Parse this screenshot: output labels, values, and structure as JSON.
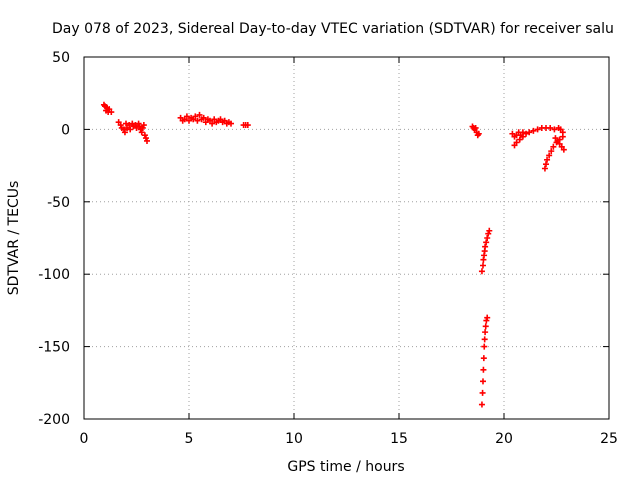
{
  "chart_data": {
    "type": "scatter",
    "title": "Day 078 of 2023, Sidereal Day-to-day VTEC variation (SDTVAR) for receiver salu",
    "xlabel": "GPS time / hours",
    "ylabel": "SDTVAR / TECUs",
    "xlim": [
      0,
      25
    ],
    "ylim": [
      -200,
      50
    ],
    "xticks": [
      0,
      5,
      10,
      15,
      20,
      25
    ],
    "yticks": [
      50,
      0,
      -50,
      -100,
      -150,
      -200
    ],
    "xtick_labels": [
      "0",
      "5",
      "10",
      "15",
      "20",
      "25"
    ],
    "ytick_labels": [
      "50",
      "0",
      "-50",
      "-100",
      "-150",
      "-200"
    ],
    "grid": true,
    "marker": "+",
    "series_color": "#ff0000",
    "series": [
      {
        "name": "SDTVAR",
        "points": [
          [
            0.95,
            17
          ],
          [
            1.0,
            16
          ],
          [
            1.05,
            13
          ],
          [
            1.1,
            15
          ],
          [
            1.15,
            12
          ],
          [
            1.2,
            14
          ],
          [
            1.3,
            12
          ],
          [
            1.65,
            5
          ],
          [
            1.75,
            3
          ],
          [
            1.8,
            1
          ],
          [
            1.9,
            0
          ],
          [
            1.95,
            -2
          ],
          [
            2.0,
            4
          ],
          [
            2.05,
            1
          ],
          [
            2.15,
            3
          ],
          [
            2.2,
            0
          ],
          [
            2.3,
            4
          ],
          [
            2.35,
            2
          ],
          [
            2.45,
            3
          ],
          [
            2.5,
            1
          ],
          [
            2.6,
            4
          ],
          [
            2.65,
            2
          ],
          [
            2.7,
            0
          ],
          [
            2.75,
            -2
          ],
          [
            2.8,
            1
          ],
          [
            2.85,
            3
          ],
          [
            2.9,
            -4
          ],
          [
            2.95,
            -6
          ],
          [
            3.0,
            -8
          ],
          [
            4.6,
            8
          ],
          [
            4.7,
            6
          ],
          [
            4.8,
            7
          ],
          [
            4.9,
            9
          ],
          [
            5.0,
            6
          ],
          [
            5.1,
            8
          ],
          [
            5.2,
            7
          ],
          [
            5.3,
            9
          ],
          [
            5.4,
            6
          ],
          [
            5.5,
            10
          ],
          [
            5.6,
            7
          ],
          [
            5.7,
            8
          ],
          [
            5.8,
            5
          ],
          [
            5.9,
            7
          ],
          [
            6.0,
            6
          ],
          [
            6.1,
            4
          ],
          [
            6.2,
            7
          ],
          [
            6.3,
            5
          ],
          [
            6.4,
            6
          ],
          [
            6.5,
            7
          ],
          [
            6.6,
            5
          ],
          [
            6.7,
            6
          ],
          [
            6.8,
            4
          ],
          [
            6.9,
            5
          ],
          [
            7.0,
            4
          ],
          [
            7.6,
            3
          ],
          [
            7.7,
            3
          ],
          [
            7.8,
            3
          ],
          [
            18.5,
            2
          ],
          [
            18.55,
            1
          ],
          [
            18.6,
            0
          ],
          [
            18.65,
            1
          ],
          [
            18.7,
            -2
          ],
          [
            18.75,
            -4
          ],
          [
            18.8,
            -3
          ],
          [
            18.95,
            -98
          ],
          [
            19.0,
            -94
          ],
          [
            19.02,
            -90
          ],
          [
            19.05,
            -87
          ],
          [
            19.08,
            -84
          ],
          [
            19.1,
            -81
          ],
          [
            19.15,
            -78
          ],
          [
            19.2,
            -75
          ],
          [
            19.25,
            -72
          ],
          [
            19.3,
            -70
          ],
          [
            18.95,
            -190
          ],
          [
            18.98,
            -182
          ],
          [
            19.0,
            -174
          ],
          [
            19.02,
            -166
          ],
          [
            19.04,
            -158
          ],
          [
            19.06,
            -150
          ],
          [
            19.08,
            -145
          ],
          [
            19.1,
            -140
          ],
          [
            19.13,
            -136
          ],
          [
            19.16,
            -132
          ],
          [
            19.2,
            -130
          ],
          [
            20.4,
            -3
          ],
          [
            20.5,
            -5
          ],
          [
            20.6,
            -4
          ],
          [
            20.7,
            -2
          ],
          [
            20.8,
            -4
          ],
          [
            20.9,
            -2
          ],
          [
            20.5,
            -11
          ],
          [
            20.6,
            -9
          ],
          [
            20.75,
            -7
          ],
          [
            20.9,
            -5
          ],
          [
            21.05,
            -3
          ],
          [
            21.2,
            -2
          ],
          [
            21.4,
            -1
          ],
          [
            21.6,
            0
          ],
          [
            21.8,
            1
          ],
          [
            22.0,
            1
          ],
          [
            22.2,
            1
          ],
          [
            22.4,
            0
          ],
          [
            22.6,
            1
          ],
          [
            22.7,
            0
          ],
          [
            22.8,
            -2
          ],
          [
            22.45,
            -6
          ],
          [
            22.55,
            -8
          ],
          [
            22.65,
            -10
          ],
          [
            22.75,
            -12
          ],
          [
            22.85,
            -14
          ],
          [
            21.95,
            -27
          ],
          [
            22.0,
            -24
          ],
          [
            22.05,
            -21
          ],
          [
            22.15,
            -18
          ],
          [
            22.25,
            -15
          ],
          [
            22.35,
            -12
          ],
          [
            22.5,
            -9
          ],
          [
            22.65,
            -7
          ],
          [
            22.8,
            -5
          ]
        ]
      }
    ]
  }
}
